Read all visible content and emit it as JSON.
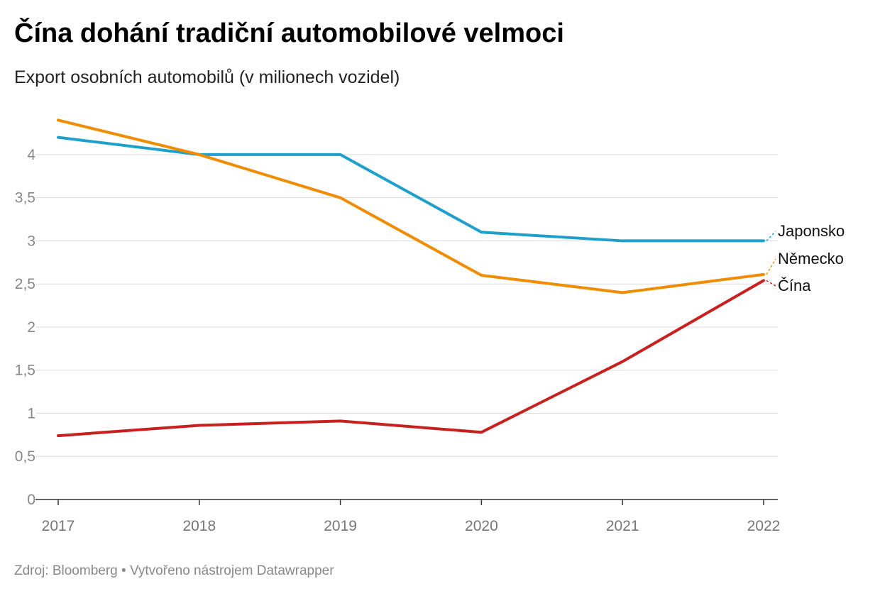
{
  "title": "Čína dohání tradiční automobilové velmoci",
  "subtitle": "Export osobních automobilů (v milionech vozidel)",
  "source": "Zdroj: Bloomberg • Vytvořeno nástrojem Datawrapper",
  "chart_data": {
    "type": "line",
    "title": "Čína dohání tradiční automobilové velmoci",
    "subtitle": "Export osobních automobilů (v milionech vozidel)",
    "x": [
      "2017",
      "2018",
      "2019",
      "2020",
      "2021",
      "2022"
    ],
    "ylim": [
      0,
      4.6
    ],
    "yticks": [
      0,
      0.5,
      1,
      1.5,
      2,
      2.5,
      3,
      3.5,
      4
    ],
    "ytick_labels": [
      "0",
      "0,5",
      "1",
      "1,5",
      "2",
      "2,5",
      "3",
      "3,5",
      "4"
    ],
    "grid": true,
    "legend": "direct labels at line ends",
    "series": [
      {
        "name": "Japonsko",
        "color": "#1fa0cc",
        "values": [
          4.2,
          4.0,
          4.0,
          3.1,
          3.0,
          3.0
        ]
      },
      {
        "name": "Německo",
        "color": "#f08c00",
        "values": [
          4.4,
          4.0,
          3.5,
          2.6,
          2.4,
          2.61
        ]
      },
      {
        "name": "Čína",
        "color": "#c8201e",
        "values": [
          0.74,
          0.86,
          0.91,
          0.78,
          1.6,
          2.54
        ]
      }
    ]
  }
}
